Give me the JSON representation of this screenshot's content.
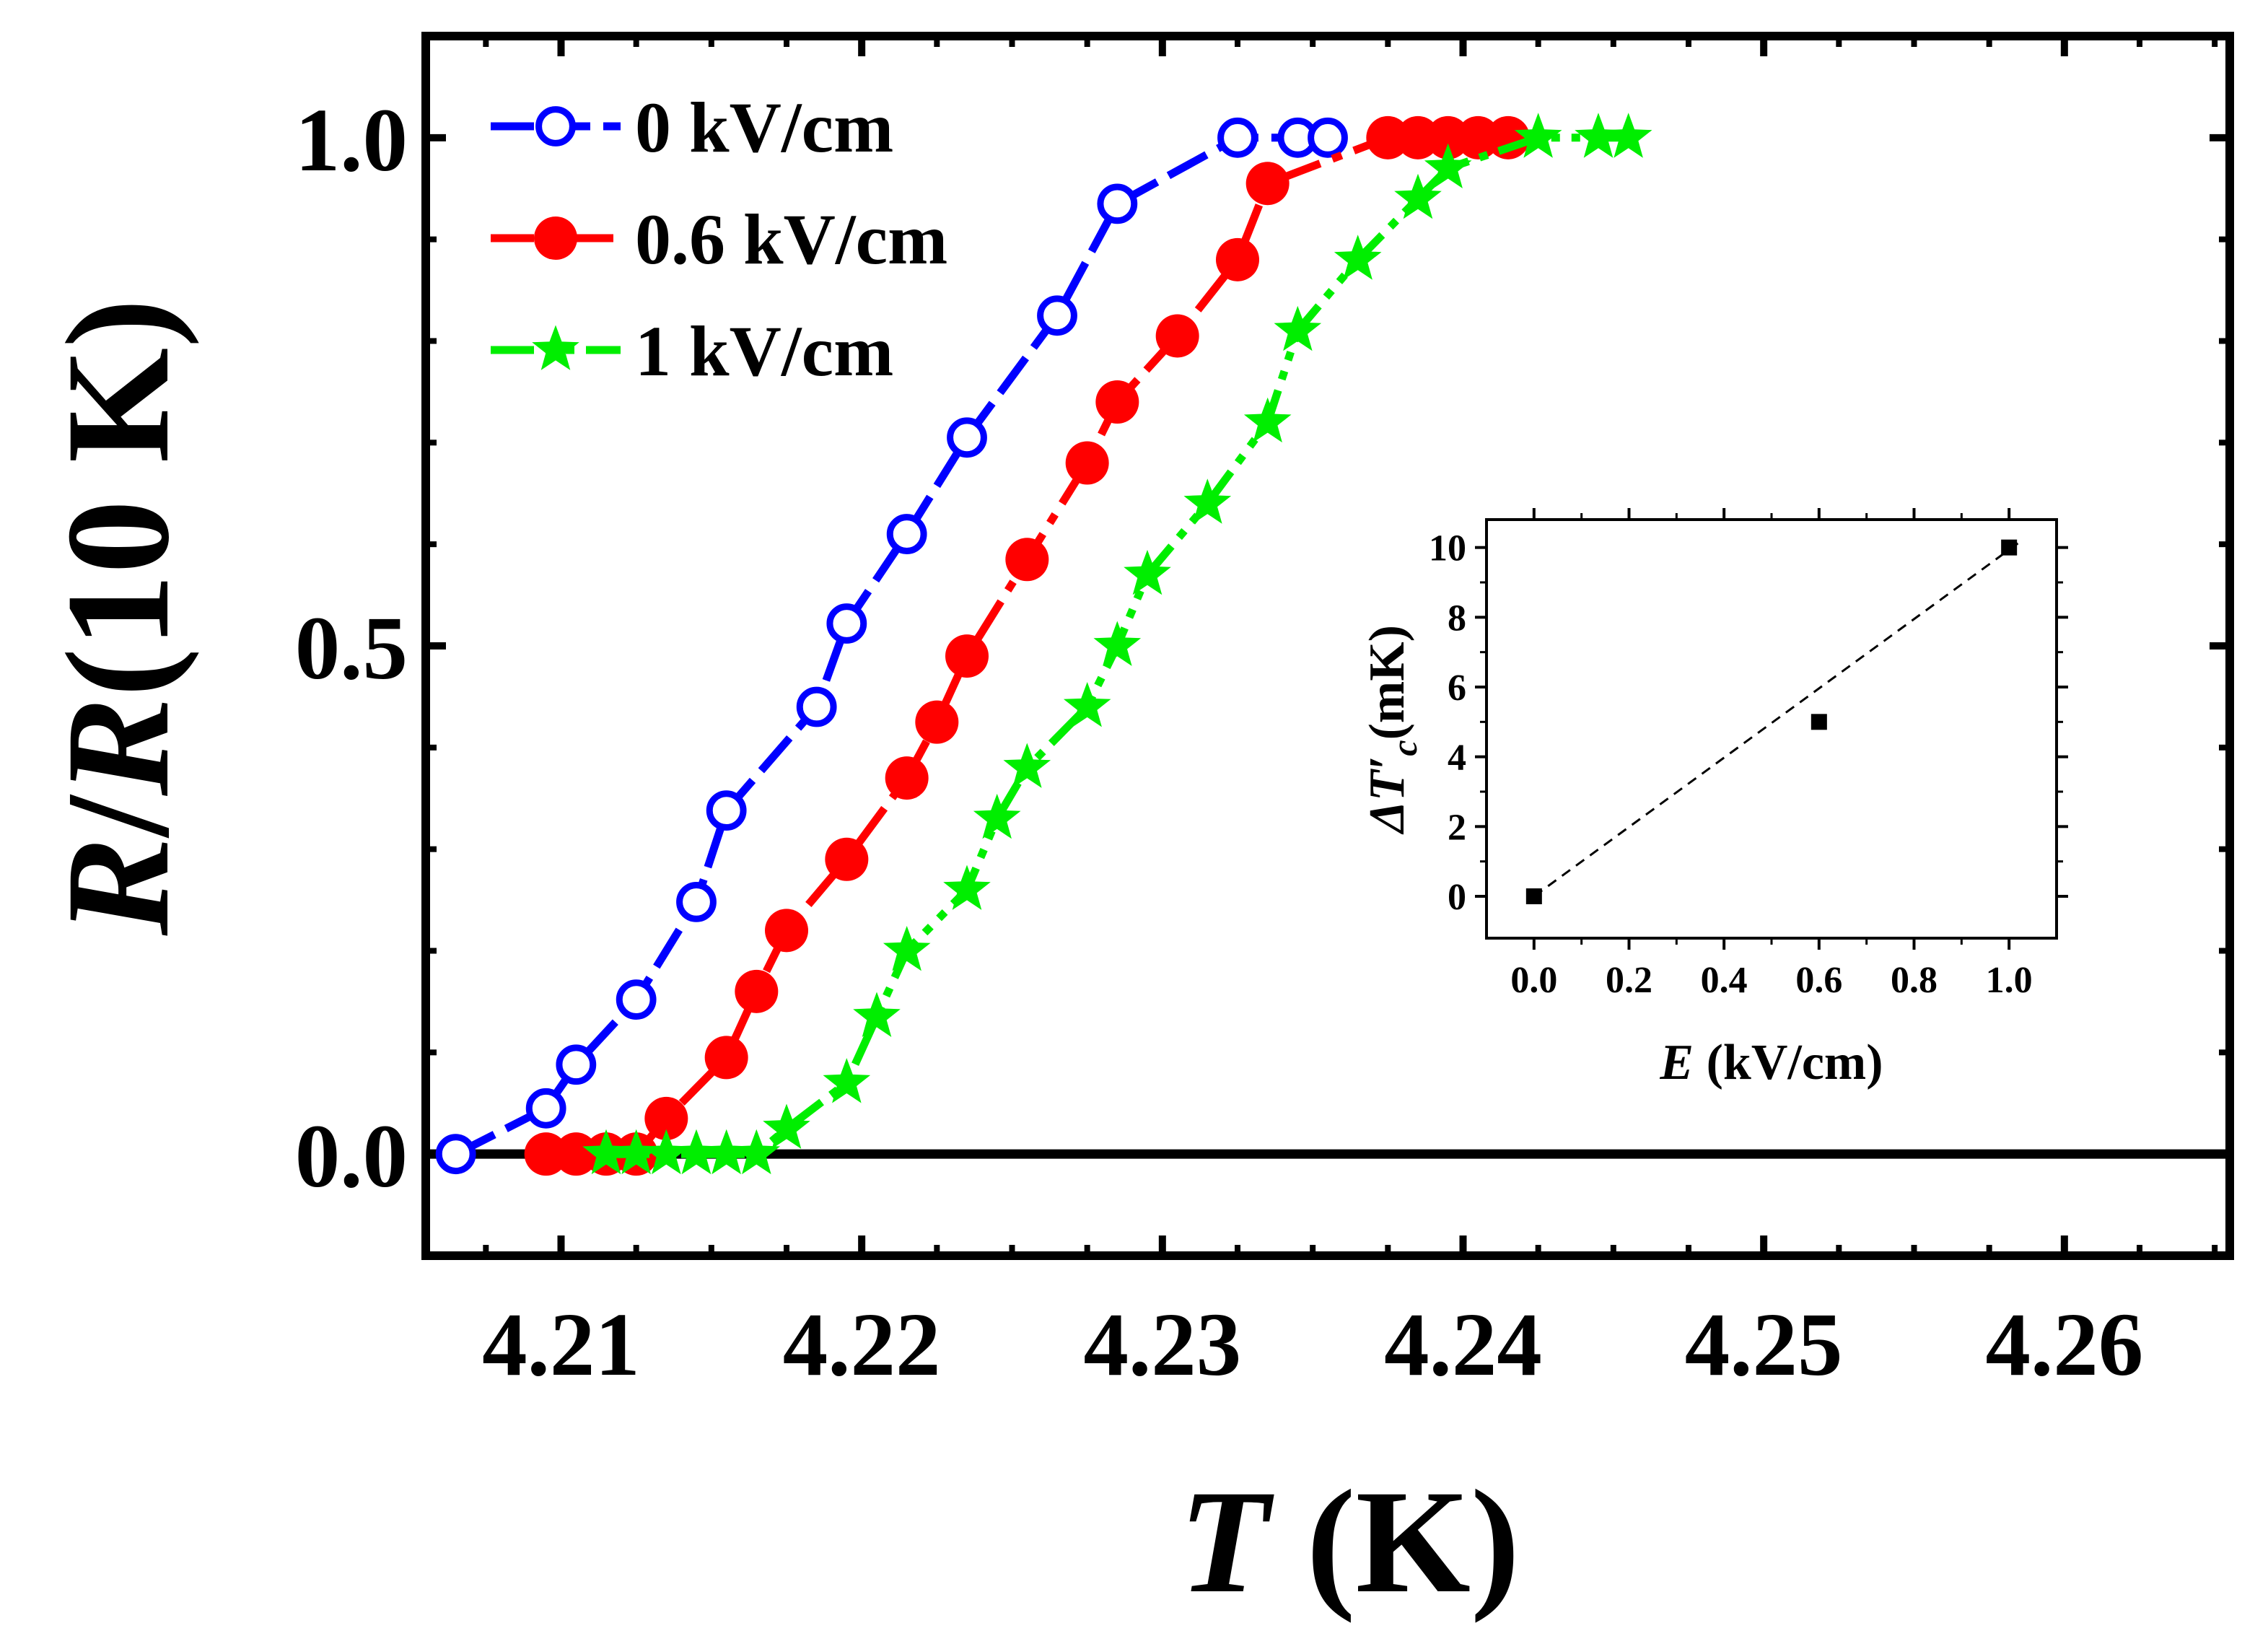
{
  "chart_data": [
    {
      "type": "line",
      "ylabel_parts": [
        "R",
        "/",
        "R",
        "(10 K)"
      ],
      "xlabel_parts": [
        "T",
        " (K)"
      ],
      "xlim": [
        4.2055,
        4.2655
      ],
      "ylim": [
        -0.1,
        1.1
      ],
      "x_ticks": [
        4.21,
        4.22,
        4.23,
        4.24,
        4.25,
        4.26
      ],
      "x_tick_labels": [
        "4.21",
        "4.22",
        "4.23",
        "4.24",
        "4.25",
        "4.26"
      ],
      "y_ticks": [
        0.0,
        0.5,
        1.0
      ],
      "y_tick_labels": [
        "0.0",
        "0.5",
        "1.0"
      ],
      "baseline_y": 0,
      "legend_position": "top-left",
      "series": [
        {
          "name": "0 kV/cm",
          "color": "#0000ff",
          "marker": "open-circle",
          "line": "dash",
          "x": [
            4.2065,
            4.2095,
            4.2105,
            4.2125,
            4.2145,
            4.2155,
            4.2185,
            4.2195,
            4.2215,
            4.2235,
            4.2265,
            4.2285,
            4.2325,
            4.2345,
            4.2355
          ],
          "y": [
            0.0,
            0.045,
            0.088,
            0.152,
            0.248,
            0.338,
            0.44,
            0.522,
            0.61,
            0.705,
            0.825,
            0.935,
            1.0,
            1.0,
            1.0
          ]
        },
        {
          "name": "0.6 kV/cm",
          "color": "#ff0000",
          "marker": "filled-circle",
          "line": "dash-dot",
          "x": [
            4.2095,
            4.2105,
            4.2115,
            4.2125,
            4.2135,
            4.2155,
            4.2165,
            4.2175,
            4.2195,
            4.2215,
            4.2225,
            4.2235,
            4.2255,
            4.2275,
            4.2285,
            4.2305,
            4.2325,
            4.2335,
            4.2375,
            4.2385,
            4.2395,
            4.2405,
            4.2415
          ],
          "y": [
            0.0,
            0.0,
            0.0,
            0.0,
            0.035,
            0.095,
            0.16,
            0.22,
            0.29,
            0.37,
            0.425,
            0.49,
            0.585,
            0.68,
            0.74,
            0.805,
            0.88,
            0.955,
            1.0,
            1.0,
            1.0,
            1.0,
            1.0
          ]
        },
        {
          "name": "1 kV/cm",
          "color": "#00ee00",
          "marker": "star",
          "line": "dash-dot-dot",
          "x": [
            4.2115,
            4.2125,
            4.2135,
            4.2145,
            4.2155,
            4.2165,
            4.2175,
            4.2195,
            4.2205,
            4.2215,
            4.2235,
            4.2245,
            4.2255,
            4.2275,
            4.2285,
            4.2295,
            4.2315,
            4.2335,
            4.2345,
            4.2365,
            4.2385,
            4.2395,
            4.2425,
            4.2445,
            4.2455
          ],
          "y": [
            0.0,
            0.0,
            0.0,
            0.0,
            0.0,
            0.0,
            0.025,
            0.07,
            0.135,
            0.2,
            0.26,
            0.33,
            0.38,
            0.44,
            0.5,
            0.57,
            0.64,
            0.72,
            0.81,
            0.88,
            0.94,
            0.97,
            1.0,
            1.0,
            1.0
          ]
        }
      ]
    },
    {
      "type": "scatter",
      "inset": true,
      "xlabel_parts": [
        "E",
        " (kV/cm)"
      ],
      "ylabel_parts": [
        "ΔT",
        "′",
        "c",
        "(mK)"
      ],
      "xlim": [
        -0.1,
        1.1
      ],
      "ylim": [
        -1.2,
        10.8
      ],
      "x_ticks": [
        0.0,
        0.2,
        0.4,
        0.6,
        0.8,
        1.0
      ],
      "x_tick_labels": [
        "0.0",
        "0.2",
        "0.4",
        "0.6",
        "0.8",
        "1.0"
      ],
      "y_ticks": [
        0,
        2,
        4,
        6,
        8,
        10
      ],
      "y_tick_labels": [
        "0",
        "2",
        "4",
        "6",
        "8",
        "10"
      ],
      "points": {
        "x": [
          0.0,
          0.6,
          1.0
        ],
        "y": [
          0,
          5,
          10
        ]
      },
      "fit_line": {
        "x": [
          0.0,
          1.0
        ],
        "y": [
          0,
          10
        ],
        "style": "dashed"
      }
    }
  ]
}
